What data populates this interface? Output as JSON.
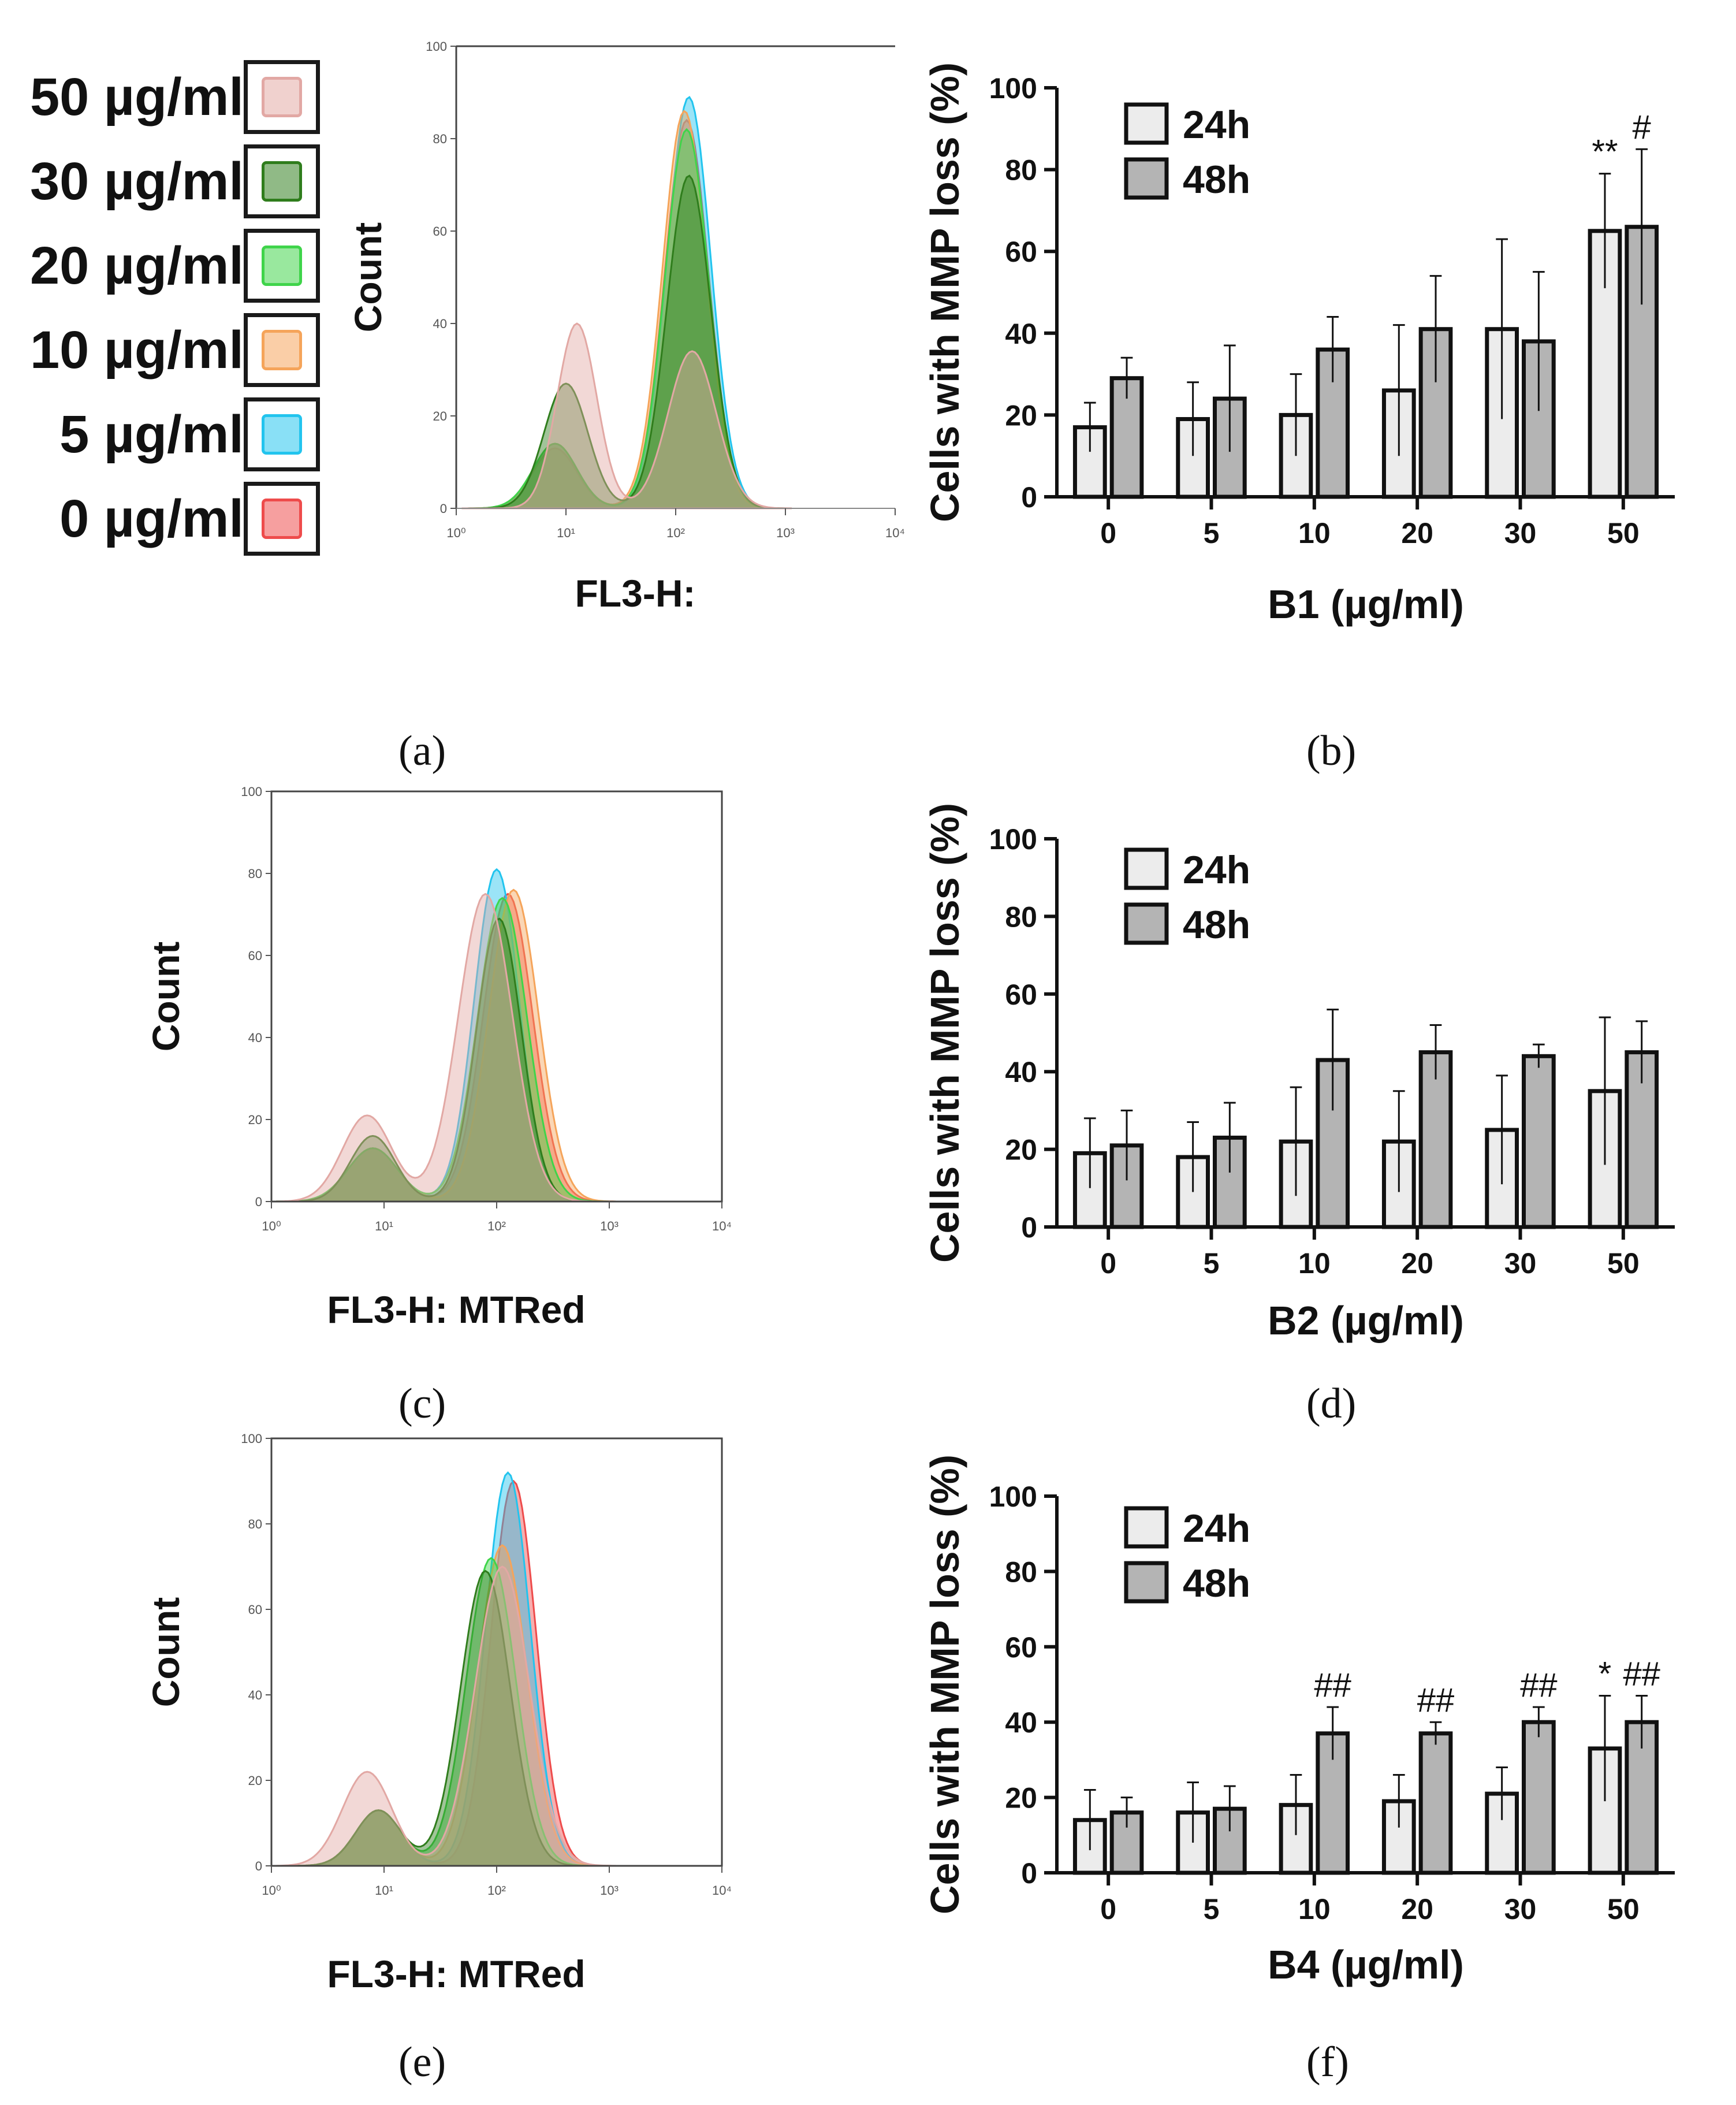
{
  "legend": {
    "items": [
      {
        "label": "50 µg/ml",
        "color": "#e2a8a4"
      },
      {
        "label": "30 µg/ml",
        "color": "#2f7d1c"
      },
      {
        "label": "20 µg/ml",
        "color": "#3fd44a"
      },
      {
        "label": "10 µg/ml",
        "color": "#f5a45a"
      },
      {
        "label": "5 µg/ml",
        "color": "#22c4ee"
      },
      {
        "label": "0 µg/ml",
        "color": "#ee4b4b"
      }
    ]
  },
  "panel_labels": {
    "a": "(a)",
    "b": "(b)",
    "c": "(c)",
    "d": "(d)",
    "e": "(e)",
    "f": "(f)"
  },
  "chart_data": [
    {
      "id": "a",
      "type": "area",
      "subtype": "histogram-overlay",
      "ylabel": "Count",
      "xlabel": "FL3-H:",
      "yticks": [
        "0",
        "20",
        "40",
        "60",
        "80",
        "100"
      ],
      "xticks": [
        "10⁰",
        "10¹",
        "10²",
        "10³",
        "10⁴"
      ],
      "xscale": "log",
      "xlim": [
        0,
        4
      ],
      "ylim": [
        0,
        100
      ],
      "series": [
        {
          "name": "0 µg/ml",
          "color": "#ee4b4b",
          "peaks": [
            {
              "x": 0.9,
              "h": 13,
              "w": 0.2
            },
            {
              "x": 2.1,
              "h": 84,
              "w": 0.2
            }
          ]
        },
        {
          "name": "5 µg/ml",
          "color": "#22c4ee",
          "peaks": [
            {
              "x": 0.9,
              "h": 14,
              "w": 0.2
            },
            {
              "x": 2.12,
              "h": 89,
              "w": 0.2
            }
          ]
        },
        {
          "name": "10 µg/ml",
          "color": "#f5a45a",
          "peaks": [
            {
              "x": 0.9,
              "h": 14,
              "w": 0.2
            },
            {
              "x": 2.08,
              "h": 86,
              "w": 0.2
            }
          ]
        },
        {
          "name": "20 µg/ml",
          "color": "#3fd44a",
          "peaks": [
            {
              "x": 0.9,
              "h": 14,
              "w": 0.2
            },
            {
              "x": 2.1,
              "h": 82,
              "w": 0.2
            }
          ]
        },
        {
          "name": "30 µg/ml",
          "color": "#2f7d1c",
          "peaks": [
            {
              "x": 1.0,
              "h": 27,
              "w": 0.2
            },
            {
              "x": 2.12,
              "h": 72,
              "w": 0.2
            }
          ]
        },
        {
          "name": "50 µg/ml",
          "color": "#e2a8a4",
          "peaks": [
            {
              "x": 1.1,
              "h": 40,
              "w": 0.18
            },
            {
              "x": 2.15,
              "h": 34,
              "w": 0.22
            }
          ]
        }
      ]
    },
    {
      "id": "b",
      "type": "bar",
      "title": "",
      "ylabel": "Cells with MMP loss (%)",
      "xlabel": "B1 (µg/ml)",
      "categories": [
        "0",
        "5",
        "10",
        "20",
        "30",
        "50"
      ],
      "yticks": [
        "0",
        "20",
        "40",
        "60",
        "80",
        "100"
      ],
      "ylim": [
        0,
        100
      ],
      "series": [
        {
          "name": "24h",
          "color": "#ececec",
          "values": [
            17,
            19,
            20,
            26,
            41,
            65
          ],
          "errors": [
            6,
            9,
            10,
            16,
            22,
            14
          ]
        },
        {
          "name": "48h",
          "color": "#b4b4b4",
          "values": [
            29,
            24,
            36,
            41,
            38,
            66
          ],
          "errors": [
            5,
            13,
            8,
            13,
            17,
            19
          ]
        }
      ],
      "annotations": [
        {
          "series": 0,
          "category": 5,
          "text": "**"
        },
        {
          "series": 1,
          "category": 5,
          "text": "#"
        }
      ]
    },
    {
      "id": "c",
      "type": "area",
      "subtype": "histogram-overlay",
      "ylabel": "Count",
      "xlabel": "FL3-H: MTRed",
      "yticks": [
        "0",
        "20",
        "40",
        "60",
        "80",
        "100"
      ],
      "xticks": [
        "10⁰",
        "10¹",
        "10²",
        "10³",
        "10⁴"
      ],
      "xscale": "log",
      "xlim": [
        0,
        4
      ],
      "ylim": [
        0,
        100
      ],
      "series": [
        {
          "name": "0 µg/ml",
          "color": "#ee4b4b",
          "peaks": [
            {
              "x": 0.9,
              "h": 13,
              "w": 0.22
            },
            {
              "x": 2.1,
              "h": 75,
              "w": 0.22
            }
          ]
        },
        {
          "name": "5 µg/ml",
          "color": "#22c4ee",
          "peaks": [
            {
              "x": 0.9,
              "h": 13,
              "w": 0.22
            },
            {
              "x": 2.0,
              "h": 81,
              "w": 0.2
            }
          ]
        },
        {
          "name": "10 µg/ml",
          "color": "#f5a45a",
          "peaks": [
            {
              "x": 0.9,
              "h": 13,
              "w": 0.22
            },
            {
              "x": 2.15,
              "h": 76,
              "w": 0.22
            }
          ]
        },
        {
          "name": "20 µg/ml",
          "color": "#3fd44a",
          "peaks": [
            {
              "x": 0.9,
              "h": 13,
              "w": 0.22
            },
            {
              "x": 2.05,
              "h": 74,
              "w": 0.22
            }
          ]
        },
        {
          "name": "30 µg/ml",
          "color": "#2f7d1c",
          "peaks": [
            {
              "x": 0.9,
              "h": 16,
              "w": 0.2
            },
            {
              "x": 2.02,
              "h": 69,
              "w": 0.2
            }
          ]
        },
        {
          "name": "50 µg/ml",
          "color": "#e2a8a4",
          "peaks": [
            {
              "x": 0.85,
              "h": 21,
              "w": 0.22
            },
            {
              "x": 1.9,
              "h": 75,
              "w": 0.24
            }
          ]
        }
      ]
    },
    {
      "id": "d",
      "type": "bar",
      "title": "",
      "ylabel": "Cells with MMP loss (%)",
      "xlabel": "B2 (µg/ml)",
      "categories": [
        "0",
        "5",
        "10",
        "20",
        "30",
        "50"
      ],
      "yticks": [
        "0",
        "20",
        "40",
        "60",
        "80",
        "100"
      ],
      "ylim": [
        0,
        100
      ],
      "series": [
        {
          "name": "24h",
          "color": "#ececec",
          "values": [
            19,
            18,
            22,
            22,
            25,
            35
          ],
          "errors": [
            9,
            9,
            14,
            13,
            14,
            19
          ]
        },
        {
          "name": "48h",
          "color": "#b4b4b4",
          "values": [
            21,
            23,
            43,
            45,
            44,
            45
          ],
          "errors": [
            9,
            9,
            13,
            7,
            3,
            8
          ]
        }
      ],
      "annotations": []
    },
    {
      "id": "e",
      "type": "area",
      "subtype": "histogram-overlay",
      "ylabel": "Count",
      "xlabel": "FL3-H: MTRed",
      "yticks": [
        "0",
        "20",
        "40",
        "60",
        "80",
        "100"
      ],
      "xticks": [
        "10⁰",
        "10¹",
        "10²",
        "10³",
        "10⁴"
      ],
      "xscale": "log",
      "xlim": [
        0,
        4
      ],
      "ylim": [
        0,
        100
      ],
      "series": [
        {
          "name": "0 µg/ml",
          "color": "#ee4b4b",
          "peaks": [
            {
              "x": 0.95,
              "h": 13,
              "w": 0.2
            },
            {
              "x": 2.15,
              "h": 90,
              "w": 0.2
            }
          ]
        },
        {
          "name": "5 µg/ml",
          "color": "#22c4ee",
          "peaks": [
            {
              "x": 0.95,
              "h": 13,
              "w": 0.2
            },
            {
              "x": 2.1,
              "h": 92,
              "w": 0.2
            }
          ]
        },
        {
          "name": "10 µg/ml",
          "color": "#f5a45a",
          "peaks": [
            {
              "x": 0.95,
              "h": 13,
              "w": 0.2
            },
            {
              "x": 2.05,
              "h": 75,
              "w": 0.22
            }
          ]
        },
        {
          "name": "20 µg/ml",
          "color": "#3fd44a",
          "peaks": [
            {
              "x": 0.95,
              "h": 13,
              "w": 0.2
            },
            {
              "x": 1.95,
              "h": 72,
              "w": 0.22
            }
          ]
        },
        {
          "name": "30 µg/ml",
          "color": "#2f7d1c",
          "peaks": [
            {
              "x": 0.95,
              "h": 13,
              "w": 0.2
            },
            {
              "x": 1.9,
              "h": 69,
              "w": 0.22
            }
          ]
        },
        {
          "name": "50 µg/ml",
          "color": "#e2a8a4",
          "peaks": [
            {
              "x": 0.85,
              "h": 22,
              "w": 0.22
            },
            {
              "x": 2.05,
              "h": 70,
              "w": 0.24
            }
          ]
        }
      ]
    },
    {
      "id": "f",
      "type": "bar",
      "title": "",
      "ylabel": "Cells with MMP loss (%)",
      "xlabel": "B4 (µg/ml)",
      "categories": [
        "0",
        "5",
        "10",
        "20",
        "30",
        "50"
      ],
      "yticks": [
        "0",
        "20",
        "40",
        "60",
        "80",
        "100"
      ],
      "ylim": [
        0,
        100
      ],
      "series": [
        {
          "name": "24h",
          "color": "#ececec",
          "values": [
            14,
            16,
            18,
            19,
            21,
            33
          ],
          "errors": [
            8,
            8,
            8,
            7,
            7,
            14
          ]
        },
        {
          "name": "48h",
          "color": "#b4b4b4",
          "values": [
            16,
            17,
            37,
            37,
            40,
            40
          ],
          "errors": [
            4,
            6,
            7,
            3,
            4,
            7
          ]
        }
      ],
      "annotations": [
        {
          "series": 1,
          "category": 2,
          "text": "##"
        },
        {
          "series": 1,
          "category": 3,
          "text": "##"
        },
        {
          "series": 1,
          "category": 4,
          "text": "##"
        },
        {
          "series": 0,
          "category": 5,
          "text": "*"
        },
        {
          "series": 1,
          "category": 5,
          "text": "##"
        }
      ]
    }
  ]
}
